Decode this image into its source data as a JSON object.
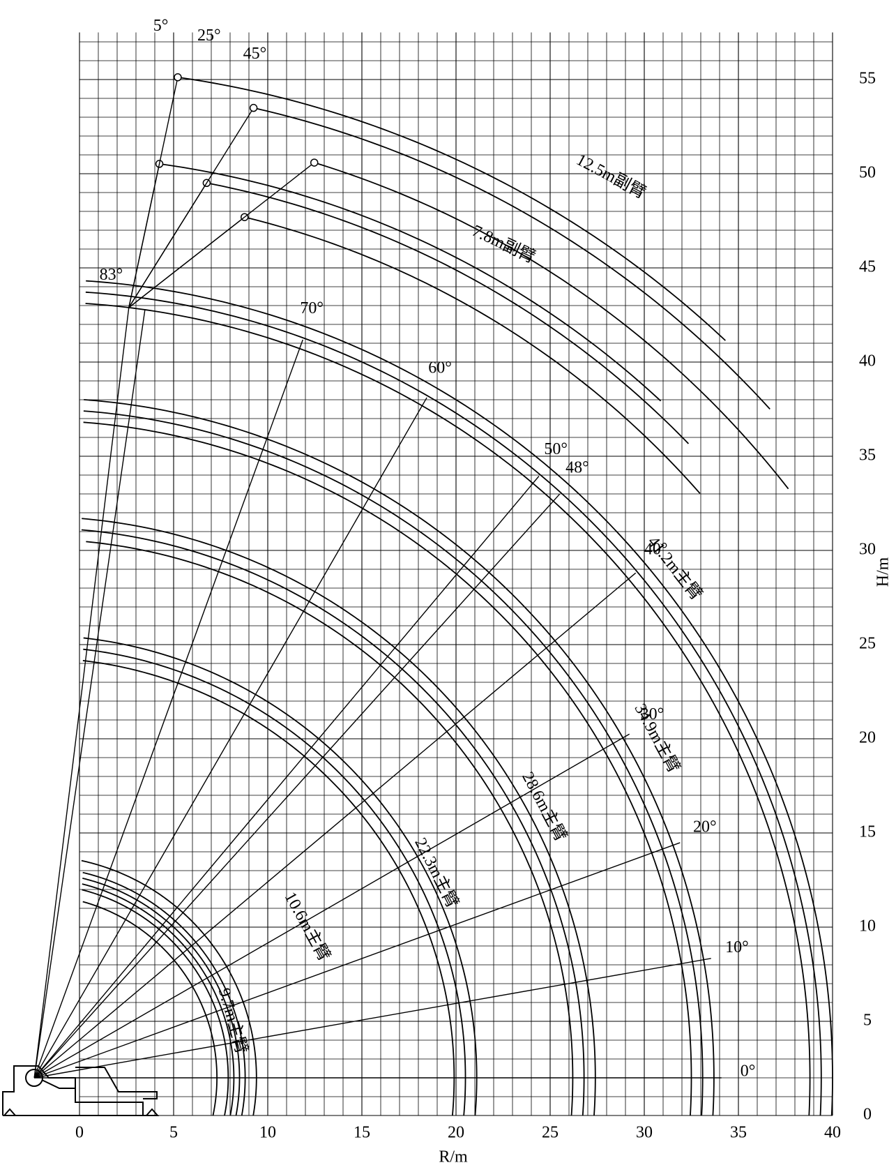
{
  "chart_data": {
    "type": "crane-range",
    "x_label": "R/m",
    "y_label": "H/m",
    "xlim": [
      0,
      40
    ],
    "ylim": [
      0,
      57.5
    ],
    "xticks": [
      0,
      5,
      10,
      15,
      20,
      25,
      30,
      35,
      40
    ],
    "yticks": [
      0,
      5,
      10,
      15,
      20,
      25,
      30,
      35,
      40,
      45,
      50,
      55
    ],
    "grid": true,
    "minor_grid": 1,
    "pivot": {
      "x": -2.4,
      "y": 2.0
    },
    "booms": [
      {
        "name": "9.7m主臂",
        "length": 9.7
      },
      {
        "name": "10.6m主臂",
        "length": 10.6
      },
      {
        "name": "22.3m主臂",
        "length": 22.3
      },
      {
        "name": "28.6m主臂",
        "length": 28.6
      },
      {
        "name": "34.9m主臂",
        "length": 34.9
      },
      {
        "name": "41.2m主臂",
        "length": 41.2
      }
    ],
    "boom_angles": [
      {
        "value": 0,
        "label": "0°"
      },
      {
        "value": 10,
        "label": "10°"
      },
      {
        "value": 20,
        "label": "20°"
      },
      {
        "value": 30,
        "label": "30°"
      },
      {
        "value": 40,
        "label": "40°"
      },
      {
        "value": 48,
        "label": "48°"
      },
      {
        "value": 50,
        "label": "50°"
      },
      {
        "value": 60,
        "label": "60°"
      },
      {
        "value": 70,
        "label": "70°"
      },
      {
        "value": 83,
        "label": "83°"
      }
    ],
    "jibs": [
      {
        "name": "7.8m副臂",
        "length": 7.8
      },
      {
        "name": "12.5m副臂",
        "length": 12.5
      }
    ],
    "jib_offsets": [
      {
        "value": 5,
        "label": "5°"
      },
      {
        "value": 25,
        "label": "25°"
      },
      {
        "value": 45,
        "label": "45°"
      }
    ]
  }
}
